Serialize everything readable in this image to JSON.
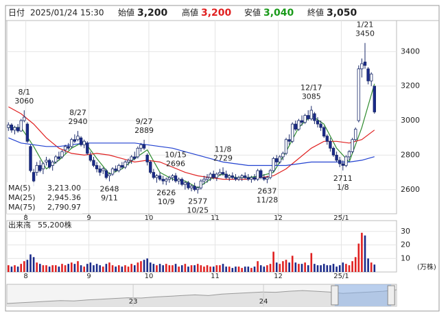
{
  "header": {
    "date_label": "日付",
    "date": "2025/01/24 15:30",
    "open_label": "始値",
    "open": "3,200",
    "high_label": "高値",
    "high": "3,200",
    "low_label": "安値",
    "low": "3,040",
    "close_label": "終値",
    "close": "3,050"
  },
  "chart_data": {
    "type": "candlestick",
    "ohlc": [
      [
        2960,
        2990,
        2940,
        2975
      ],
      [
        2975,
        2985,
        2930,
        2945
      ],
      [
        2945,
        2970,
        2920,
        2960
      ],
      [
        2960,
        2980,
        2930,
        2940
      ],
      [
        2940,
        3010,
        2935,
        3000
      ],
      [
        3000,
        3060,
        2990,
        3020
      ],
      [
        2980,
        2990,
        2870,
        2880
      ],
      [
        2850,
        2860,
        2700,
        2710
      ],
      [
        2700,
        2720,
        2620,
        2650
      ],
      [
        2700,
        2760,
        2680,
        2740
      ],
      [
        2740,
        2770,
        2700,
        2710
      ],
      [
        2720,
        2760,
        2690,
        2750
      ],
      [
        2760,
        2790,
        2740,
        2770
      ],
      [
        2770,
        2780,
        2720,
        2730
      ],
      [
        2740,
        2770,
        2710,
        2760
      ],
      [
        2760,
        2800,
        2750,
        2790
      ],
      [
        2790,
        2820,
        2770,
        2780
      ],
      [
        2790,
        2830,
        2780,
        2820
      ],
      [
        2830,
        2860,
        2810,
        2850
      ],
      [
        2850,
        2870,
        2830,
        2840
      ],
      [
        2850,
        2900,
        2840,
        2890
      ],
      [
        2890,
        2920,
        2870,
        2880
      ],
      [
        2890,
        2940,
        2880,
        2910
      ],
      [
        2900,
        2910,
        2850,
        2860
      ],
      [
        2860,
        2890,
        2840,
        2880
      ],
      [
        2870,
        2880,
        2800,
        2810
      ],
      [
        2800,
        2820,
        2760,
        2770
      ],
      [
        2770,
        2790,
        2730,
        2740
      ],
      [
        2740,
        2760,
        2700,
        2720
      ],
      [
        2720,
        2740,
        2680,
        2700
      ],
      [
        2710,
        2730,
        2690,
        2720
      ],
      [
        2710,
        2720,
        2660,
        2670
      ],
      [
        2680,
        2700,
        2648,
        2690
      ],
      [
        2690,
        2730,
        2680,
        2720
      ],
      [
        2720,
        2740,
        2700,
        2710
      ],
      [
        2710,
        2750,
        2700,
        2740
      ],
      [
        2740,
        2760,
        2720,
        2730
      ],
      [
        2730,
        2770,
        2720,
        2760
      ],
      [
        2760,
        2780,
        2740,
        2770
      ],
      [
        2770,
        2800,
        2750,
        2790
      ],
      [
        2790,
        2820,
        2770,
        2780
      ],
      [
        2790,
        2850,
        2780,
        2840
      ],
      [
        2840,
        2870,
        2820,
        2860
      ],
      [
        2860,
        2889,
        2830,
        2840
      ],
      [
        2800,
        2810,
        2740,
        2760
      ],
      [
        2760,
        2770,
        2690,
        2700
      ],
      [
        2700,
        2720,
        2660,
        2670
      ],
      [
        2670,
        2690,
        2640,
        2680
      ],
      [
        2680,
        2700,
        2650,
        2660
      ],
      [
        2660,
        2680,
        2630,
        2650
      ],
      [
        2650,
        2670,
        2626,
        2660
      ],
      [
        2660,
        2680,
        2640,
        2670
      ],
      [
        2670,
        2690,
        2650,
        2680
      ],
      [
        2680,
        2696,
        2640,
        2650
      ],
      [
        2650,
        2670,
        2630,
        2660
      ],
      [
        2660,
        2670,
        2620,
        2630
      ],
      [
        2630,
        2650,
        2600,
        2640
      ],
      [
        2640,
        2650,
        2600,
        2610
      ],
      [
        2610,
        2630,
        2590,
        2620
      ],
      [
        2620,
        2640,
        2590,
        2600
      ],
      [
        2600,
        2620,
        2577,
        2610
      ],
      [
        2610,
        2660,
        2600,
        2650
      ],
      [
        2650,
        2680,
        2630,
        2660
      ],
      [
        2660,
        2690,
        2640,
        2670
      ],
      [
        2670,
        2700,
        2650,
        2690
      ],
      [
        2690,
        2710,
        2660,
        2670
      ],
      [
        2670,
        2700,
        2650,
        2690
      ],
      [
        2690,
        2720,
        2680,
        2700
      ],
      [
        2700,
        2729,
        2680,
        2690
      ],
      [
        2690,
        2710,
        2660,
        2670
      ],
      [
        2670,
        2690,
        2650,
        2680
      ],
      [
        2680,
        2700,
        2660,
        2670
      ],
      [
        2670,
        2690,
        2650,
        2660
      ],
      [
        2660,
        2680,
        2650,
        2670
      ],
      [
        2670,
        2690,
        2650,
        2680
      ],
      [
        2680,
        2700,
        2660,
        2670
      ],
      [
        2670,
        2690,
        2650,
        2660
      ],
      [
        2660,
        2680,
        2640,
        2670
      ],
      [
        2670,
        2690,
        2650,
        2660
      ],
      [
        2660,
        2720,
        2650,
        2710
      ],
      [
        2710,
        2720,
        2660,
        2670
      ],
      [
        2670,
        2690,
        2650,
        2660
      ],
      [
        2660,
        2680,
        2637,
        2670
      ],
      [
        2670,
        2720,
        2660,
        2710
      ],
      [
        2710,
        2790,
        2700,
        2780
      ],
      [
        2780,
        2800,
        2740,
        2760
      ],
      [
        2760,
        2800,
        2750,
        2790
      ],
      [
        2790,
        2820,
        2770,
        2810
      ],
      [
        2810,
        2900,
        2800,
        2890
      ],
      [
        2890,
        2920,
        2860,
        2880
      ],
      [
        2880,
        2990,
        2870,
        2980
      ],
      [
        2980,
        3000,
        2940,
        2950
      ],
      [
        2950,
        3010,
        2940,
        3000
      ],
      [
        3000,
        3030,
        2970,
        2990
      ],
      [
        2990,
        3040,
        2980,
        3030
      ],
      [
        3030,
        3060,
        3000,
        3010
      ],
      [
        3010,
        3085,
        3000,
        3060
      ],
      [
        3040,
        3050,
        2980,
        3000
      ],
      [
        3000,
        3020,
        2960,
        2980
      ],
      [
        2980,
        3000,
        2940,
        2960
      ],
      [
        2960,
        2970,
        2900,
        2910
      ],
      [
        2910,
        2920,
        2860,
        2880
      ],
      [
        2880,
        2900,
        2820,
        2840
      ],
      [
        2840,
        2850,
        2790,
        2800
      ],
      [
        2800,
        2820,
        2760,
        2770
      ],
      [
        2770,
        2790,
        2730,
        2750
      ],
      [
        2750,
        2770,
        2711,
        2740
      ],
      [
        2740,
        2800,
        2730,
        2790
      ],
      [
        2790,
        2830,
        2770,
        2820
      ],
      [
        2820,
        2900,
        2810,
        2890
      ],
      [
        2890,
        2960,
        2880,
        2950
      ],
      [
        3000,
        3320,
        2990,
        3300
      ],
      [
        3300,
        3360,
        3250,
        3330
      ],
      [
        3340,
        3450,
        3300,
        3320
      ],
      [
        3300,
        3310,
        3210,
        3230
      ],
      [
        3230,
        3280,
        3200,
        3270
      ],
      [
        3200,
        3200,
        3040,
        3050
      ]
    ],
    "xlim": [
      -0.5,
      123
    ],
    "ylim": [
      2460,
      3580
    ],
    "yticks": [
      2600,
      2800,
      3000,
      3200,
      3400
    ],
    "xticks": [
      {
        "value": 5.5,
        "label": "8"
      },
      {
        "value": 25.5,
        "label": "9"
      },
      {
        "value": 44.5,
        "label": "10"
      },
      {
        "value": 65.5,
        "label": "11"
      },
      {
        "value": 85.5,
        "label": "12"
      },
      {
        "value": 105.5,
        "label": "25/1"
      }
    ],
    "grid": true,
    "up_color": "#ffffff",
    "down_color": "#1a2a8a",
    "edge_color": "#1a2a6a",
    "annotations": [
      {
        "date": "8/1",
        "value": 3060,
        "x": 5,
        "position": "above"
      },
      {
        "date": "8/27",
        "value": 2940,
        "x": 22,
        "position": "above"
      },
      {
        "date": "9/11",
        "value": 2648,
        "x": 32,
        "position": "below"
      },
      {
        "date": "9/27",
        "value": 2889,
        "x": 43,
        "position": "above"
      },
      {
        "date": "10/9",
        "value": 2626,
        "x": 50,
        "position": "below"
      },
      {
        "date": "10/15",
        "value": 2696,
        "x": 53,
        "position": "above"
      },
      {
        "date": "10/25",
        "value": 2577,
        "x": 60,
        "position": "below"
      },
      {
        "date": "11/8",
        "value": 2729,
        "x": 68,
        "position": "above"
      },
      {
        "date": "11/28",
        "value": 2637,
        "x": 82,
        "position": "below"
      },
      {
        "date": "12/17",
        "value": 3085,
        "x": 96,
        "position": "above"
      },
      {
        "date": "1/8",
        "value": 2711,
        "x": 106,
        "position": "below"
      },
      {
        "date": "1/21",
        "value": 3450,
        "x": 113,
        "position": "above"
      }
    ],
    "ma": [
      {
        "name": "MA(5)",
        "label": "3,213.00",
        "color": "#2e8b2e",
        "x": [
          0,
          4,
          8,
          12,
          16,
          20,
          24,
          28,
          32,
          36,
          40,
          44,
          48,
          52,
          56,
          60,
          64,
          68,
          72,
          76,
          80,
          84,
          88,
          92,
          96,
          100,
          104,
          108,
          112,
          116
        ],
        "values": [
          2960,
          2960,
          2850,
          2720,
          2770,
          2840,
          2880,
          2780,
          2690,
          2720,
          2780,
          2830,
          2700,
          2660,
          2650,
          2610,
          2660,
          2690,
          2670,
          2670,
          2680,
          2700,
          2820,
          2960,
          3030,
          2980,
          2840,
          2760,
          2960,
          3213
        ]
      },
      {
        "name": "MA(25)",
        "label": "2,945.36",
        "color": "#e02020",
        "x": [
          0,
          4,
          8,
          12,
          16,
          20,
          24,
          28,
          32,
          36,
          40,
          44,
          48,
          52,
          56,
          60,
          64,
          68,
          72,
          76,
          80,
          84,
          88,
          92,
          96,
          100,
          104,
          108,
          112,
          116
        ],
        "values": [
          3080,
          3040,
          2980,
          2900,
          2840,
          2810,
          2800,
          2810,
          2800,
          2780,
          2760,
          2770,
          2760,
          2730,
          2700,
          2680,
          2670,
          2660,
          2660,
          2660,
          2670,
          2680,
          2720,
          2780,
          2840,
          2880,
          2880,
          2870,
          2890,
          2945.36
        ]
      },
      {
        "name": "MA(75)",
        "label": "2,790.97",
        "color": "#2040d0",
        "x": [
          0,
          4,
          8,
          12,
          16,
          20,
          24,
          28,
          32,
          36,
          40,
          44,
          48,
          52,
          56,
          60,
          64,
          68,
          72,
          76,
          80,
          84,
          88,
          92,
          96,
          100,
          104,
          108,
          112,
          116
        ],
        "values": [
          2900,
          2870,
          2860,
          2850,
          2850,
          2860,
          2870,
          2870,
          2870,
          2870,
          2870,
          2860,
          2850,
          2840,
          2820,
          2800,
          2780,
          2760,
          2750,
          2740,
          2740,
          2740,
          2740,
          2750,
          2760,
          2760,
          2760,
          2760,
          2770,
          2790.97
        ]
      }
    ],
    "volume": {
      "title": "出来高",
      "current": "55,200株",
      "unit": "(万株)",
      "ylim": [
        0,
        38
      ],
      "yticks": [
        10,
        20,
        30
      ],
      "up_color": "#e02020",
      "down_color": "#1a2a8a",
      "values": [
        5,
        4,
        5,
        4,
        6,
        8,
        9,
        13,
        11,
        7,
        6,
        5,
        5,
        4,
        5,
        5,
        4,
        6,
        5,
        6,
        7,
        6,
        8,
        5,
        4,
        6,
        7,
        5,
        6,
        5,
        4,
        6,
        7,
        5,
        4,
        5,
        4,
        5,
        4,
        6,
        5,
        7,
        8,
        9,
        10,
        7,
        6,
        5,
        6,
        5,
        6,
        5,
        5,
        6,
        4,
        5,
        6,
        4,
        5,
        5,
        6,
        5,
        4,
        5,
        4,
        4,
        5,
        5,
        6,
        4,
        4,
        3,
        4,
        4,
        3,
        4,
        4,
        3,
        4,
        8,
        5,
        4,
        5,
        6,
        15,
        7,
        6,
        8,
        9,
        7,
        12,
        7,
        6,
        6,
        7,
        5,
        14,
        6,
        5,
        5,
        6,
        5,
        5,
        6,
        4,
        5,
        7,
        6,
        5,
        8,
        11,
        21,
        29,
        27,
        10,
        7,
        5.5
      ]
    },
    "navigator": {
      "values": [
        2100,
        2150,
        2200,
        2250,
        2300,
        2280,
        2350,
        2400,
        2450,
        2500,
        2480,
        2550,
        2600,
        2650,
        2700,
        2650,
        2750,
        2800,
        2850,
        2900,
        2880,
        2950,
        3000,
        2950,
        2900,
        2800,
        2850,
        2900,
        2950,
        3050
      ],
      "xticks": [
        {
          "value": 9.4,
          "label": "23"
        },
        {
          "value": 19.1,
          "label": "24"
        }
      ],
      "window": [
        24.4,
        28.6
      ]
    }
  }
}
